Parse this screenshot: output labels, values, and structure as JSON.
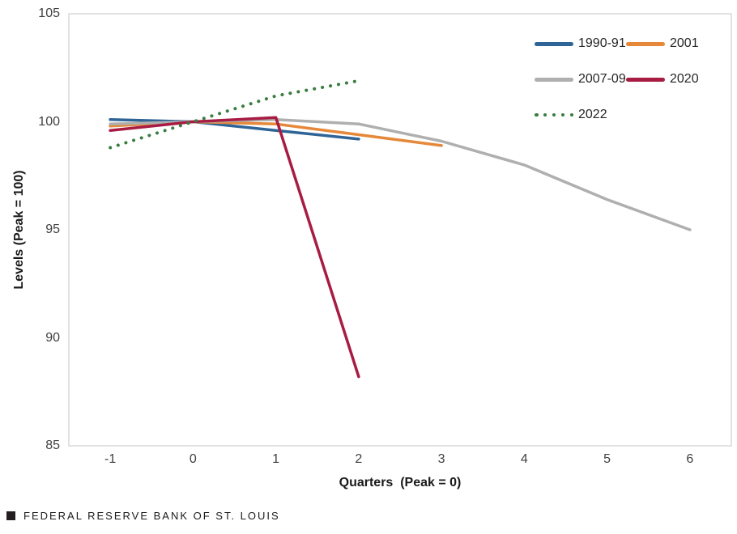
{
  "chart_data": {
    "type": "line",
    "title": "",
    "xlabel": "Quarters  (Peak = 0)",
    "ylabel": "Levels (Peak = 100)",
    "xlim": [
      -1.5,
      6.5
    ],
    "ylim": [
      85,
      105
    ],
    "x_ticks": [
      "-1",
      "0",
      "1",
      "2",
      "3",
      "4",
      "5",
      "6"
    ],
    "x_tick_values": [
      -1,
      0,
      1,
      2,
      3,
      4,
      5,
      6
    ],
    "y_ticks": [
      "85",
      "90",
      "95",
      "100",
      "105"
    ],
    "y_tick_values": [
      85,
      90,
      95,
      100,
      105
    ],
    "grid": false,
    "plot_border_color": "#d9d9d9",
    "legend_position": "top-right",
    "series": [
      {
        "name": "1990-91",
        "color": "#2F6496",
        "style": "solid",
        "points": [
          [
            -1,
            100.1
          ],
          [
            0,
            100
          ],
          [
            1,
            99.6
          ],
          [
            2,
            99.2
          ]
        ]
      },
      {
        "name": "2001",
        "color": "#E5883A",
        "style": "solid",
        "points": [
          [
            -1,
            99.8
          ],
          [
            0,
            100
          ],
          [
            1,
            99.9
          ],
          [
            2,
            99.4
          ],
          [
            3,
            98.9
          ]
        ]
      },
      {
        "name": "2007-09",
        "color": "#AFAFAF",
        "style": "solid",
        "points": [
          [
            -1,
            99.9
          ],
          [
            0,
            100
          ],
          [
            1,
            100.1
          ],
          [
            2,
            99.9
          ],
          [
            3,
            99.1
          ],
          [
            4,
            98.0
          ],
          [
            5,
            96.4
          ],
          [
            6,
            95.0
          ]
        ]
      },
      {
        "name": "2020",
        "color": "#A81C44",
        "style": "solid",
        "points": [
          [
            -1,
            99.6
          ],
          [
            0,
            100
          ],
          [
            1,
            100.2
          ],
          [
            2,
            88.2
          ]
        ]
      },
      {
        "name": "2022",
        "color": "#3A7D40",
        "style": "dotted",
        "points": [
          [
            -1,
            98.8
          ],
          [
            0,
            100
          ],
          [
            1,
            101.2
          ],
          [
            2,
            101.9
          ]
        ]
      }
    ]
  },
  "footer": {
    "brand": "FEDERAL RESERVE BANK OF ST. LOUIS"
  }
}
